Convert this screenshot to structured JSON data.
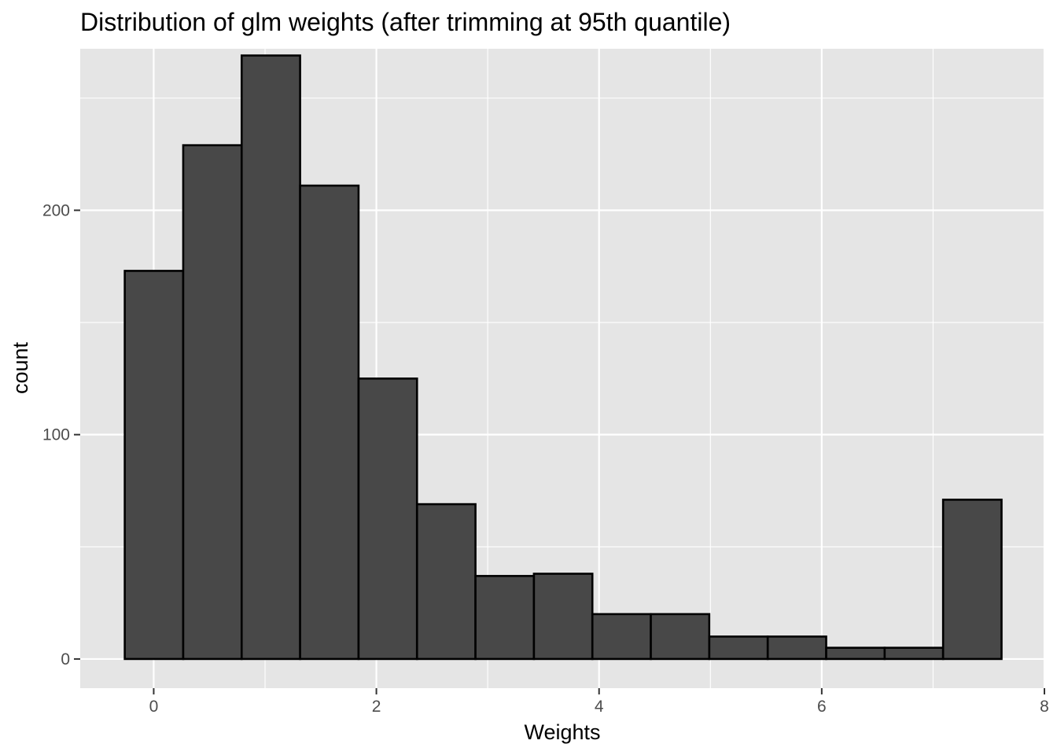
{
  "chart_data": {
    "type": "bar",
    "title": "Distribution of glm weights (after trimming at 95th quantile)",
    "xlabel": "Weights",
    "ylabel": "count",
    "xlim": [
      -0.66,
      8.0
    ],
    "ylim": [
      -13,
      272
    ],
    "x_ticks": [
      0,
      2,
      4,
      6,
      8
    ],
    "x_tick_labels": [
      "0",
      "2",
      "4",
      "6",
      "8"
    ],
    "y_ticks": [
      0,
      100,
      200
    ],
    "y_tick_labels": [
      "0",
      "100",
      "200"
    ],
    "grid": true,
    "bin_width": 0.525,
    "bins": [
      {
        "x_start": -0.26,
        "x_end": 0.265,
        "count": 173
      },
      {
        "x_start": 0.265,
        "x_end": 0.79,
        "count": 229
      },
      {
        "x_start": 0.79,
        "x_end": 1.315,
        "count": 269
      },
      {
        "x_start": 1.315,
        "x_end": 1.84,
        "count": 211
      },
      {
        "x_start": 1.84,
        "x_end": 2.365,
        "count": 125
      },
      {
        "x_start": 2.365,
        "x_end": 2.89,
        "count": 69
      },
      {
        "x_start": 2.89,
        "x_end": 3.415,
        "count": 37
      },
      {
        "x_start": 3.415,
        "x_end": 3.94,
        "count": 38
      },
      {
        "x_start": 3.94,
        "x_end": 4.465,
        "count": 20
      },
      {
        "x_start": 4.465,
        "x_end": 4.99,
        "count": 20
      },
      {
        "x_start": 4.99,
        "x_end": 5.515,
        "count": 10
      },
      {
        "x_start": 5.515,
        "x_end": 6.04,
        "count": 10
      },
      {
        "x_start": 6.04,
        "x_end": 6.565,
        "count": 5
      },
      {
        "x_start": 6.565,
        "x_end": 7.09,
        "count": 5
      },
      {
        "x_start": 7.09,
        "x_end": 7.615,
        "count": 71
      }
    ],
    "colors": {
      "panel_background": "#e5e5e5",
      "grid": "#ffffff",
      "bar_fill": "#484848",
      "bar_outline": "#000000",
      "tick_text": "#4d4d4d",
      "tick_mark": "#333333",
      "text": "#000000"
    }
  }
}
